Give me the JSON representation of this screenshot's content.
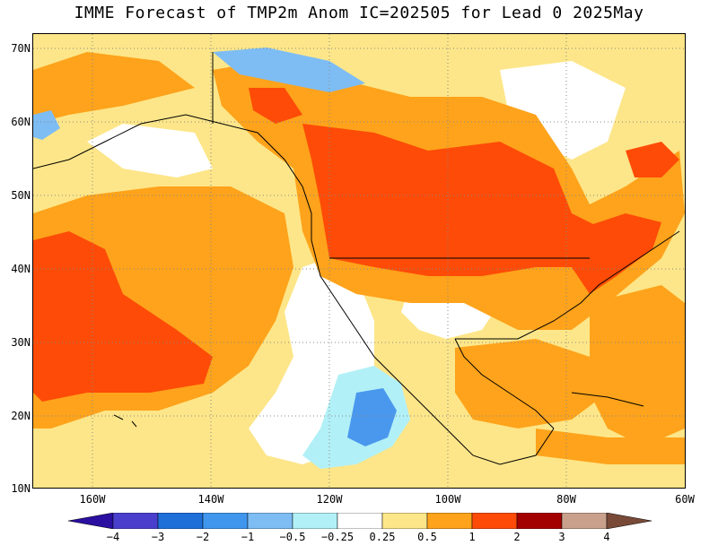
{
  "title": "IMME Forecast of TMP2m Anom IC=202505 for Lead 0 2025May",
  "map": {
    "region": "North America and eastern Pacific",
    "latitude_labels": [
      "70N",
      "60N",
      "50N",
      "40N",
      "30N",
      "20N",
      "10N"
    ],
    "longitude_labels": [
      "160W",
      "140W",
      "120W",
      "100W",
      "80W",
      "60W"
    ],
    "lon_range": [
      -170,
      -60
    ],
    "lat_range": [
      10,
      72
    ],
    "gridlines": "dotted",
    "field": "2m temperature anomaly",
    "colors": {
      "white": "#ffffff",
      "pale_yellow": "#fde689",
      "light_orange": "#fdd071",
      "orange": "#fea31b",
      "red_orange": "#fe4b07",
      "light_cyan": "#b2f0f7",
      "light_blue": "#7ebdf4",
      "mid_blue": "#4a98ee",
      "coast": "#000000"
    }
  },
  "colorbar": {
    "labels": [
      "−4",
      "−3",
      "−2",
      "−1",
      "−0.5",
      "−0.25",
      "0.25",
      "0.5",
      "1",
      "2",
      "3",
      "4"
    ],
    "colors": [
      "#2a0fa0",
      "#4a3fcd",
      "#1e6fd8",
      "#3f96ec",
      "#7ebdf4",
      "#b2f0f7",
      "#ffffff",
      "#fde689",
      "#fea31b",
      "#fe4b07",
      "#a30000",
      "#c8a08c",
      "#7a4a38"
    ]
  }
}
